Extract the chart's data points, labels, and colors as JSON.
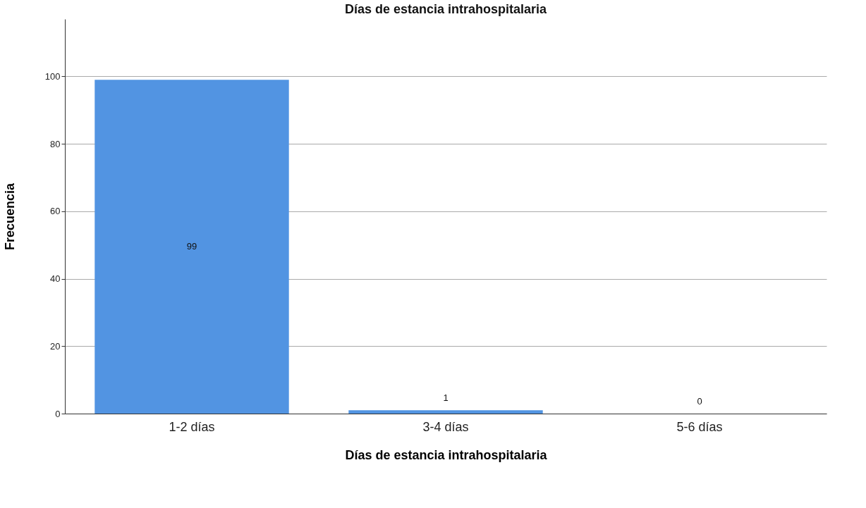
{
  "chart_data": {
    "type": "bar",
    "title": "Días de estancia intrahospitalaria",
    "xlabel": "Días de estancia intrahospitalaria",
    "ylabel": "Frecuencia",
    "categories": [
      "1-2 días",
      "3-4 días",
      "5-6 días"
    ],
    "values": [
      99,
      1,
      0
    ],
    "color": "#5294e2",
    "ylim": [
      0,
      117
    ],
    "yticks": [
      0,
      20,
      40,
      60,
      80,
      100
    ],
    "grid": "y",
    "data_labels": true
  }
}
